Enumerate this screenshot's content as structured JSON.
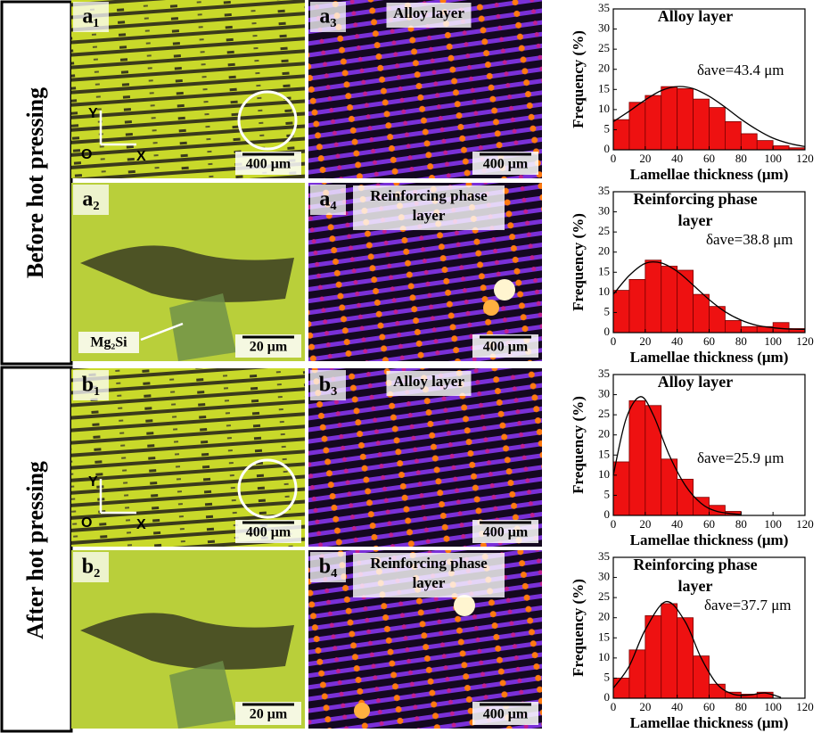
{
  "row_labels": [
    "Before hot pressing",
    "After hot pressing"
  ],
  "images": [
    {
      "label": "a₁",
      "scale": "400 μm",
      "axes": {
        "y": "Y",
        "o": "O",
        "x": "X"
      }
    },
    {
      "label": "a₂",
      "scale": "20 μm",
      "arrow_label": "Mg₂Si"
    },
    {
      "label": "a₃",
      "scale": "400 μm",
      "caption": [
        "Alloy layer"
      ]
    },
    {
      "label": "a₄",
      "scale": "400 μm",
      "caption": [
        "Reinforcing phase",
        "layer"
      ]
    },
    {
      "label": "b₁",
      "scale": "400 μm",
      "axes": {
        "y": "Y",
        "o": "O",
        "x": "X"
      }
    },
    {
      "label": "b₂",
      "scale": "20 μm"
    },
    {
      "label": "b₃",
      "scale": "400 μm",
      "caption": [
        "Alloy layer"
      ]
    },
    {
      "label": "b₄",
      "scale": "400 μm",
      "caption": [
        "Reinforcing phase",
        "layer"
      ]
    }
  ],
  "chart_data": [
    {
      "type": "histogram",
      "title": [
        "Alloy layer"
      ],
      "annotation": "δave=43.4 μm",
      "xlabel": "Lamellae thickness (μm)",
      "ylabel": "Frequency (%)",
      "color": "#ee1111",
      "bins": [
        0,
        10,
        20,
        30,
        40,
        50,
        60,
        70,
        80,
        90,
        100,
        110,
        120
      ],
      "values": [
        7.5,
        11.8,
        13.5,
        15.7,
        15.2,
        12.6,
        10.5,
        7,
        4,
        2.3,
        1,
        0.5
      ],
      "fit": {
        "x": [
          0,
          10,
          20,
          30,
          40,
          50,
          60,
          70,
          80,
          90,
          100,
          110,
          120
        ],
        "values": [
          7,
          9.6,
          12.4,
          14.7,
          15.7,
          15.2,
          13.3,
          10.6,
          7.6,
          5,
          2.9,
          1.6,
          0.8
        ]
      },
      "xlim": [
        0,
        120
      ],
      "ylim": [
        0,
        35
      ],
      "xticks": [
        0,
        20,
        40,
        60,
        80,
        100,
        120
      ],
      "yticks": [
        0,
        5,
        10,
        15,
        20,
        25,
        30,
        35
      ]
    },
    {
      "type": "histogram",
      "title": [
        "Reinforcing phase",
        "layer"
      ],
      "annotation": "δave=38.8 μm",
      "xlabel": "Lamellae thickness (μm)",
      "ylabel": "Frequency (%)",
      "color": "#ee1111",
      "bins": [
        0,
        10,
        20,
        30,
        40,
        50,
        60,
        70,
        80,
        90,
        100,
        110,
        120
      ],
      "values": [
        10.5,
        13.2,
        18,
        16.5,
        15.5,
        9.5,
        6.5,
        3,
        1.5,
        1.5,
        2.5,
        1
      ],
      "fit": {
        "x": [
          0,
          10,
          20,
          30,
          40,
          50,
          60,
          70,
          80,
          90,
          100,
          110,
          120
        ],
        "values": [
          9.5,
          14.2,
          17.2,
          17.3,
          15.2,
          11.8,
          8.2,
          5.2,
          3.1,
          1.8,
          1.2,
          0.9,
          0.8
        ]
      },
      "xlim": [
        0,
        120
      ],
      "ylim": [
        0,
        35
      ],
      "xticks": [
        0,
        20,
        40,
        60,
        80,
        100,
        120
      ],
      "yticks": [
        0,
        5,
        10,
        15,
        20,
        25,
        30,
        35
      ]
    },
    {
      "type": "histogram",
      "title": [
        "Alloy layer"
      ],
      "annotation": "δave=25.9 μm",
      "xlabel": "Lamellae thickness (μm)",
      "ylabel": "Frequency (%)",
      "color": "#ee1111",
      "bins": [
        0,
        10,
        20,
        30,
        40,
        50,
        60,
        70,
        80
      ],
      "values": [
        13.3,
        28.5,
        27.3,
        14,
        9,
        4.5,
        2.5,
        1
      ],
      "fit": {
        "x": [
          0,
          8,
          17,
          25,
          35,
          45,
          55,
          65,
          80
        ],
        "values": [
          10,
          24,
          29.5,
          25,
          15,
          7.5,
          3,
          1,
          0.2
        ]
      },
      "xlim": [
        0,
        120
      ],
      "ylim": [
        0,
        35
      ],
      "xticks": [
        0,
        20,
        40,
        60,
        80,
        100,
        120
      ],
      "yticks": [
        0,
        5,
        10,
        15,
        20,
        25,
        30,
        35
      ]
    },
    {
      "type": "histogram",
      "title": [
        "Reinforcing phase",
        "layer"
      ],
      "annotation": "δave=37.7 μm",
      "xlabel": "Lamellae thickness (μm)",
      "ylabel": "Frequency (%)",
      "color": "#ee1111",
      "bins": [
        0,
        10,
        20,
        30,
        40,
        50,
        60,
        70,
        80,
        90,
        100
      ],
      "values": [
        5,
        12,
        20.5,
        23.5,
        20,
        10.5,
        3.5,
        1.5,
        1,
        1.5,
        0.5
      ],
      "fit": {
        "x": [
          0,
          10,
          20,
          33,
          45,
          55,
          65,
          75,
          85,
          95,
          105
        ],
        "values": [
          2.5,
          8,
          17,
          24,
          19,
          10,
          3.5,
          1,
          0.8,
          1.3,
          0.2
        ]
      },
      "xlim": [
        0,
        120
      ],
      "ylim": [
        0,
        35
      ],
      "xticks": [
        0,
        20,
        40,
        60,
        80,
        100,
        120
      ],
      "yticks": [
        0,
        5,
        10,
        15,
        20,
        25,
        30,
        35
      ]
    }
  ]
}
